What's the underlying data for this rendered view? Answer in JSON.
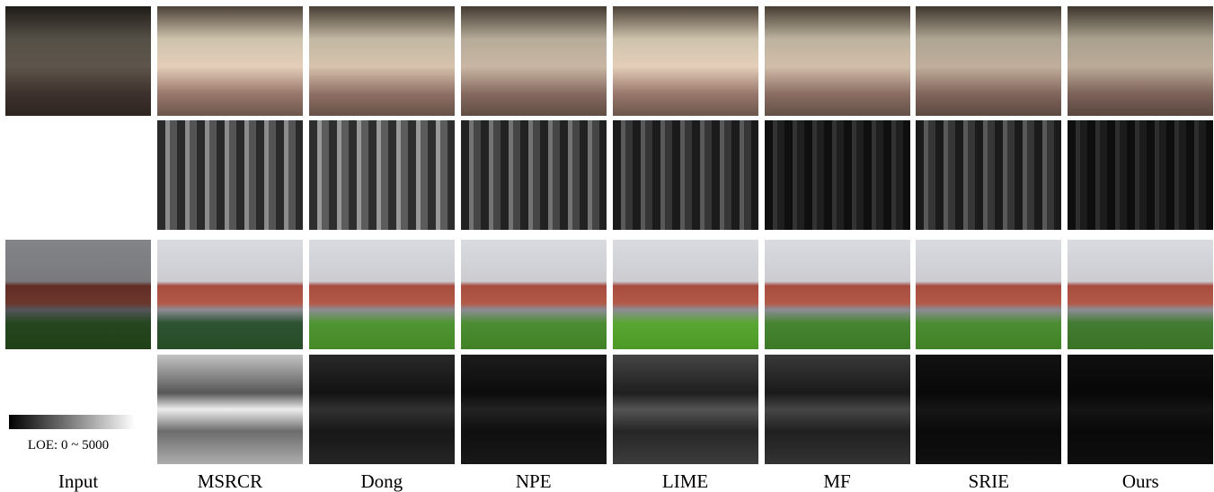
{
  "columns": [
    "Input",
    "MSRCR",
    "Dong",
    "NPE",
    "LIME",
    "MF",
    "SRIE",
    "Ours"
  ],
  "legend": {
    "label": "LOE: 0 ~ 5000"
  }
}
